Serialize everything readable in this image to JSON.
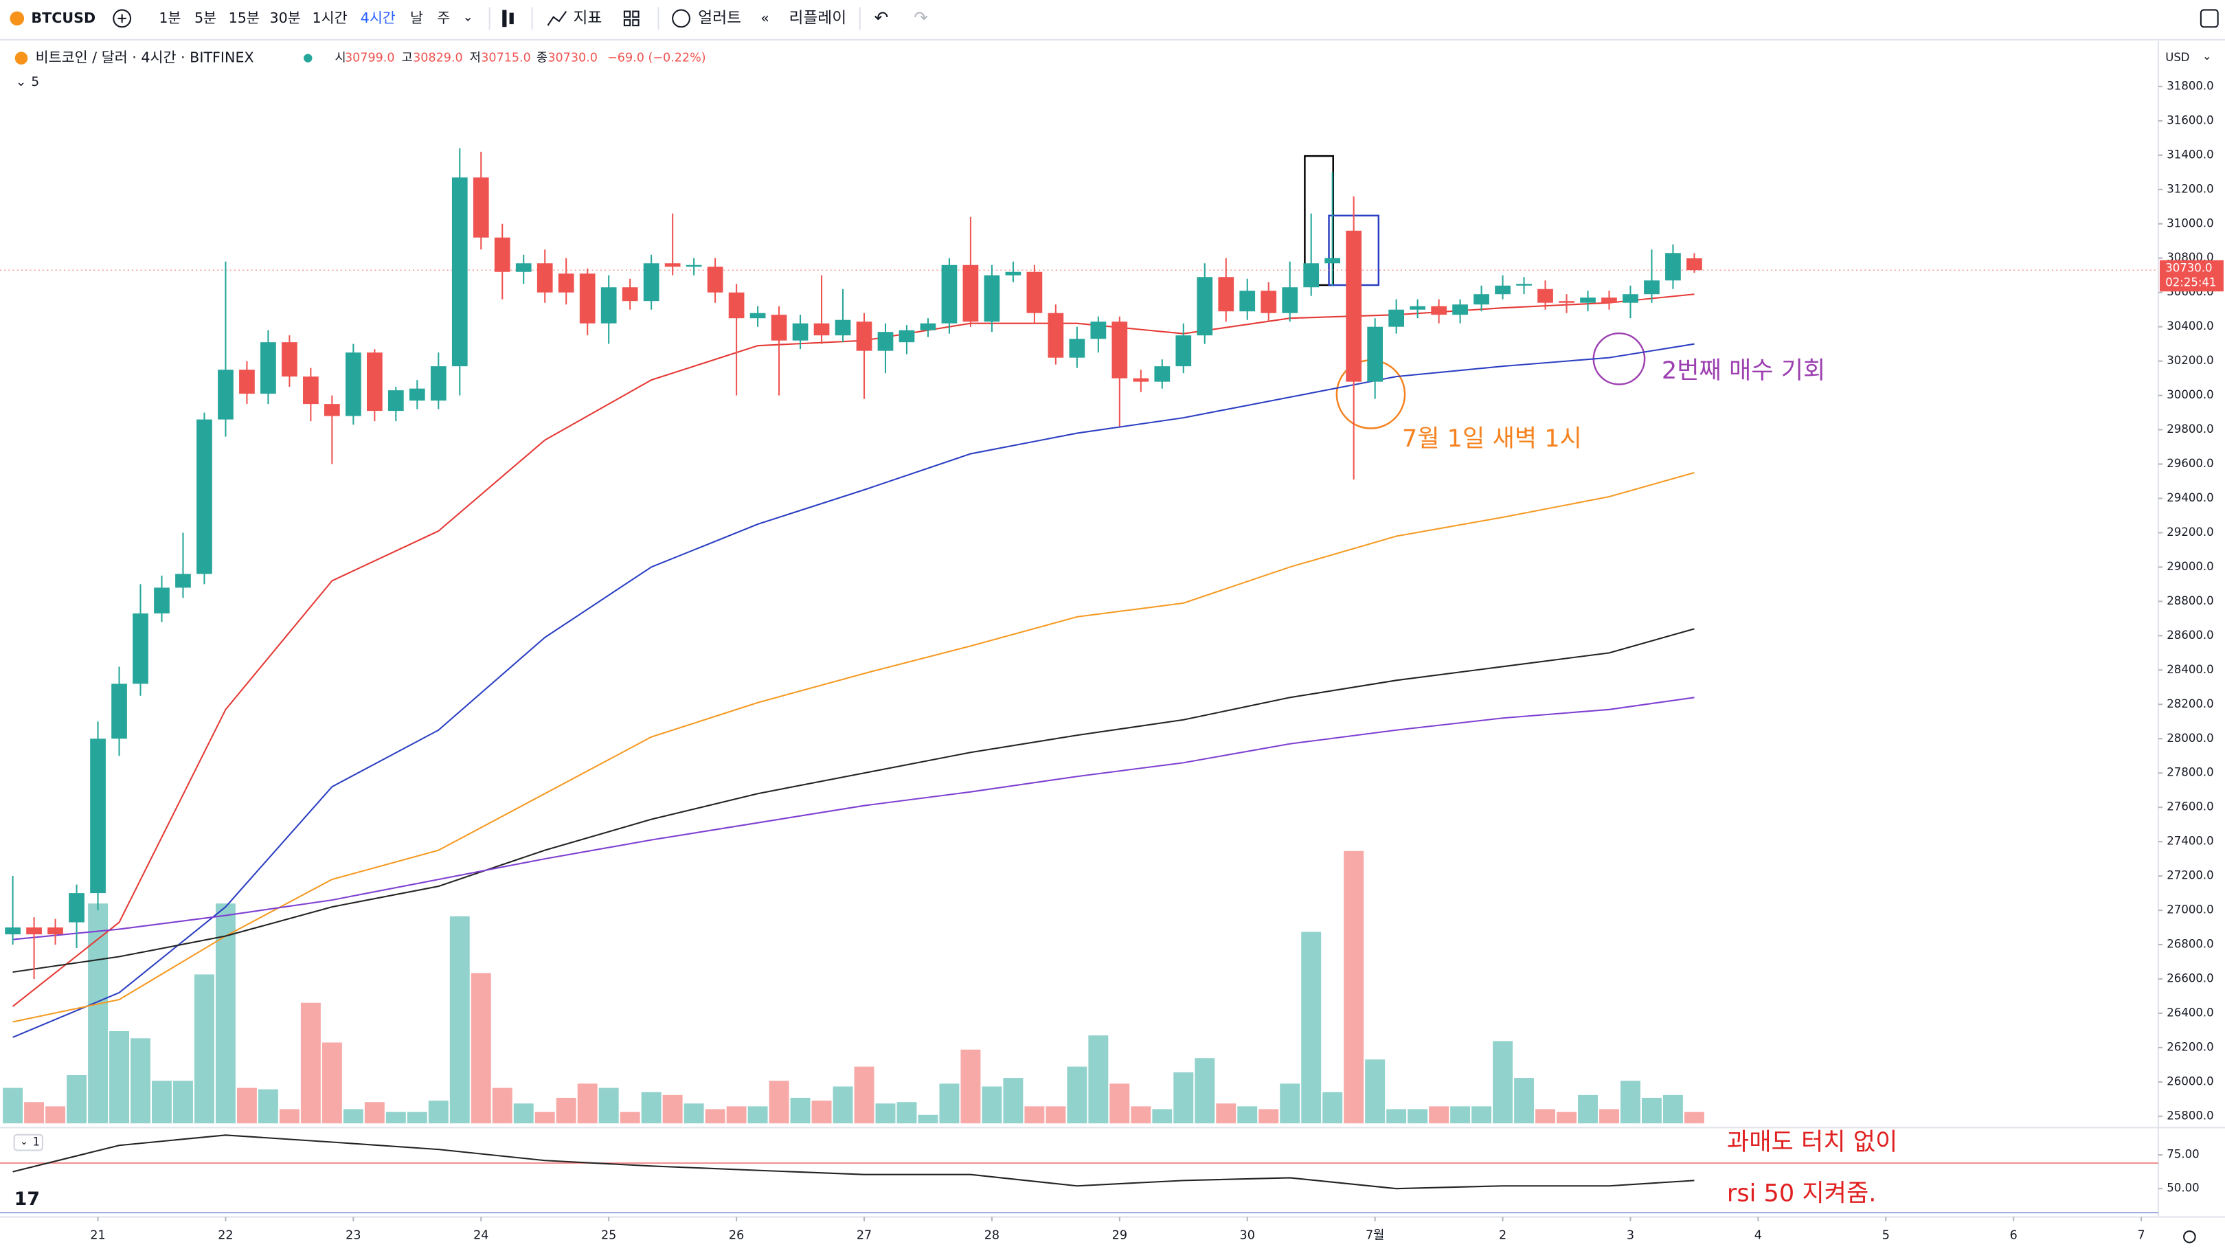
{
  "toolbar": {
    "symbol": "BTCUSD",
    "intervals": [
      "1분",
      "5분",
      "15분",
      "30분",
      "1시간",
      "4시간",
      "날",
      "주"
    ],
    "active_interval": 5,
    "indicators": "지표",
    "alerts": "얼러트",
    "replay": "리플레이"
  },
  "legend": {
    "title": "비트코인 / 달러 · 4시간 · BITFINEX",
    "open_label": "시",
    "open": "30799.0",
    "high_label": "고",
    "high": "30829.0",
    "low_label": "저",
    "low": "30715.0",
    "close_label": "종",
    "close": "30730.0",
    "change": "−69.0 (−0.22%)",
    "indicator_count": "5",
    "rsi_label": "1",
    "currency": "USD",
    "price_label": "30730.0",
    "countdown": "02:25:41"
  },
  "chart_data": {
    "type": "candlestick",
    "open": [
      26860,
      26900,
      26900,
      26930,
      27100,
      28000,
      28320,
      28730,
      28880,
      28960,
      29860,
      30150,
      30010,
      30310,
      30110,
      29950,
      29880,
      30250,
      29910,
      29970,
      29970,
      30170,
      31270,
      30920,
      30720,
      30770,
      30710,
      30710,
      30420,
      30630,
      30550,
      30770,
      30750,
      30750,
      30600,
      30450,
      30470,
      30320,
      30420,
      30350,
      30430,
      30260,
      30310,
      30380,
      30420,
      30760,
      30430,
      30700,
      30720,
      30480,
      30220,
      30330,
      30430,
      30100,
      30080,
      30170,
      30350,
      30690,
      30490,
      30610,
      30480,
      30630,
      30770,
      30960,
      30080,
      30400,
      30500,
      30520,
      30470,
      30530,
      30590,
      30640,
      30620,
      30550,
      30540,
      30570,
      30540,
      30590,
      30670,
      30799
    ],
    "high": [
      27200,
      26960,
      26950,
      27150,
      28100,
      28420,
      28900,
      28950,
      29200,
      29900,
      30780,
      30200,
      30380,
      30350,
      30160,
      30000,
      30300,
      30270,
      30050,
      30090,
      30250,
      31440,
      31420,
      31000,
      30820,
      30850,
      30800,
      30740,
      30700,
      30680,
      30820,
      31060,
      30800,
      30800,
      30650,
      30520,
      30520,
      30470,
      30700,
      30620,
      30480,
      30420,
      30410,
      30450,
      30800,
      31040,
      30760,
      30780,
      30760,
      30530,
      30400,
      30460,
      30460,
      30150,
      30210,
      30420,
      30770,
      30800,
      30680,
      30660,
      30780,
      31060,
      31300,
      31160,
      30450,
      30560,
      30560,
      30560,
      30560,
      30640,
      30700,
      30690,
      30670,
      30590,
      30610,
      30610,
      30640,
      30850,
      30880,
      30829
    ],
    "low": [
      26800,
      26600,
      26800,
      26780,
      27000,
      27900,
      28250,
      28680,
      28820,
      28900,
      29760,
      29950,
      29950,
      30050,
      29850,
      29600,
      29830,
      29850,
      29850,
      29920,
      29920,
      30000,
      30850,
      30560,
      30650,
      30540,
      30530,
      30350,
      30300,
      30500,
      30500,
      30700,
      30700,
      30540,
      30000,
      30400,
      30000,
      30270,
      30300,
      30310,
      29980,
      30130,
      30240,
      30340,
      30360,
      30400,
      30370,
      30660,
      30420,
      30180,
      30160,
      30250,
      29820,
      30020,
      30040,
      30130,
      30300,
      30430,
      30440,
      30430,
      30430,
      30580,
      30640,
      29510,
      29980,
      30360,
      30450,
      30420,
      30420,
      30490,
      30560,
      30590,
      30500,
      30480,
      30490,
      30500,
      30450,
      30540,
      30620,
      30715
    ],
    "close": [
      26900,
      26860,
      26860,
      27100,
      28000,
      28320,
      28730,
      28880,
      28960,
      29860,
      30150,
      30010,
      30310,
      30110,
      29950,
      29880,
      30250,
      29910,
      30030,
      30040,
      30170,
      31270,
      30920,
      30720,
      30770,
      30600,
      30600,
      30420,
      30630,
      30550,
      30770,
      30750,
      30760,
      30600,
      30450,
      30480,
      30320,
      30420,
      30350,
      30440,
      30260,
      30370,
      30380,
      30420,
      30760,
      30430,
      30700,
      30720,
      30480,
      30220,
      30330,
      30430,
      30100,
      30080,
      30170,
      30350,
      30690,
      30490,
      30610,
      30480,
      30630,
      30770,
      30800,
      30080,
      30400,
      30500,
      30520,
      30470,
      30530,
      30590,
      30640,
      30650,
      30540,
      30540,
      30570,
      30540,
      30590,
      30670,
      30830,
      30730
    ],
    "volume": [
      25,
      15,
      12,
      34,
      155,
      65,
      60,
      30,
      30,
      105,
      155,
      25,
      24,
      10,
      85,
      57,
      10,
      15,
      8,
      8,
      16,
      146,
      106,
      25,
      14,
      8,
      18,
      28,
      25,
      8,
      22,
      20,
      14,
      10,
      12,
      12,
      30,
      18,
      16,
      26,
      40,
      14,
      15,
      6,
      28,
      52,
      26,
      32,
      12,
      12,
      40,
      62,
      28,
      12,
      10,
      36,
      46,
      14,
      12,
      10,
      28,
      135,
      22,
      192,
      45,
      10,
      10,
      12,
      12,
      12,
      58,
      32,
      10,
      8,
      20,
      10,
      30,
      18,
      20,
      8
    ],
    "up_color": "#26a69a",
    "down_color": "#ef5350",
    "xlim": [
      -0.6,
      100.8
    ],
    "xticks": [
      {
        "value": 4,
        "label": "21"
      },
      {
        "value": 10,
        "label": "22"
      },
      {
        "value": 16,
        "label": "23"
      },
      {
        "value": 22,
        "label": "24"
      },
      {
        "value": 28,
        "label": "25"
      },
      {
        "value": 34,
        "label": "26"
      },
      {
        "value": 40,
        "label": "27"
      },
      {
        "value": 46,
        "label": "28"
      },
      {
        "value": 52,
        "label": "29"
      },
      {
        "value": 58,
        "label": "30"
      },
      {
        "value": 64,
        "label": "7월"
      },
      {
        "value": 70,
        "label": "2"
      },
      {
        "value": 76,
        "label": "3"
      },
      {
        "value": 82,
        "label": "4"
      },
      {
        "value": 88,
        "label": "5"
      },
      {
        "value": 94,
        "label": "6"
      },
      {
        "value": 100,
        "label": "7"
      }
    ],
    "ylim": [
      25600,
      32000
    ],
    "yticks": [
      {
        "value": 25800,
        "label": "25800.0"
      },
      {
        "value": 26000,
        "label": "26000.0"
      },
      {
        "value": 26200,
        "label": "26200.0"
      },
      {
        "value": 26400,
        "label": "26400.0"
      },
      {
        "value": 26600,
        "label": "26600.0"
      },
      {
        "value": 26800,
        "label": "26800.0"
      },
      {
        "value": 27000,
        "label": "27000.0"
      },
      {
        "value": 27200,
        "label": "27200.0"
      },
      {
        "value": 27400,
        "label": "27400.0"
      },
      {
        "value": 27600,
        "label": "27600.0"
      },
      {
        "value": 27800,
        "label": "27800.0"
      },
      {
        "value": 28000,
        "label": "28000.0"
      },
      {
        "value": 28200,
        "label": "28200.0"
      },
      {
        "value": 28400,
        "label": "28400.0"
      },
      {
        "value": 28600,
        "label": "28600.0"
      },
      {
        "value": 28800,
        "label": "28800.0"
      },
      {
        "value": 29000,
        "label": "29000.0"
      },
      {
        "value": 29200,
        "label": "29200.0"
      },
      {
        "value": 29400,
        "label": "29400.0"
      },
      {
        "value": 29600,
        "label": "29600.0"
      },
      {
        "value": 29800,
        "label": "29800.0"
      },
      {
        "value": 30000,
        "label": "30000.0"
      },
      {
        "value": 30200,
        "label": "30200.0"
      },
      {
        "value": 30400,
        "label": "30400.0"
      },
      {
        "value": 30600,
        "label": "30600.0"
      },
      {
        "value": 30800,
        "label": "30800.0"
      },
      {
        "value": 31000,
        "label": "31000.0"
      },
      {
        "value": 31200,
        "label": "31200.0"
      },
      {
        "value": 31400,
        "label": "31400.0"
      },
      {
        "value": 31600,
        "label": "31600.0"
      },
      {
        "value": 31800,
        "label": "31800.0"
      }
    ],
    "ma_x": [
      0,
      5,
      10,
      15,
      20,
      25,
      30,
      35,
      40,
      45,
      50,
      55,
      60,
      65,
      70,
      75,
      79
    ],
    "moving_averages": [
      {
        "color": "#e53935",
        "values": [
          26440,
          26930,
          28170,
          28920,
          29210,
          29740,
          30090,
          30290,
          30320,
          30420,
          30420,
          30360,
          30450,
          30470,
          30510,
          30540,
          30590
        ]
      },
      {
        "color": "#2b3fc2",
        "values": [
          26260,
          26520,
          27020,
          27720,
          28050,
          28590,
          29000,
          29250,
          29450,
          29660,
          29780,
          29870,
          29990,
          30110,
          30170,
          30220,
          30300
        ]
      },
      {
        "color": "#f59a23",
        "values": [
          26350,
          26480,
          26850,
          27180,
          27350,
          27680,
          28010,
          28210,
          28380,
          28540,
          28710,
          28790,
          29000,
          29180,
          29290,
          29410,
          29550
        ]
      },
      {
        "color": "#222222",
        "values": [
          26640,
          26730,
          26850,
          27020,
          27140,
          27350,
          27530,
          27680,
          27800,
          27920,
          28020,
          28110,
          28240,
          28340,
          28420,
          28500,
          28640
        ]
      },
      {
        "color": "#7e3fd1",
        "values": [
          26830,
          26890,
          26970,
          27060,
          27180,
          27300,
          27410,
          27510,
          27610,
          27690,
          27780,
          27860,
          27970,
          28050,
          28120,
          28170,
          28240
        ]
      }
    ],
    "rsi": {
      "color": "#222222",
      "values": [
        62.5,
        82,
        89.6,
        84.4,
        79,
        70.8,
        66.7,
        63.5,
        60.4,
        60.4,
        52,
        56,
        58,
        50,
        52,
        52,
        56
      ],
      "ylim": [
        29,
        92
      ],
      "yticks": [
        {
          "value": 75,
          "label": "75.00"
        },
        {
          "value": 50,
          "label": "50.00"
        }
      ]
    },
    "annotations": [
      {
        "text": "7월 1일 새벽 1시",
        "color": "#f5821f"
      },
      {
        "text": "2번째 매수 기회",
        "color": "#9c3fb0"
      },
      {
        "text": "과매도 터치 없이",
        "color": "#e02020"
      },
      {
        "text": "rsi 50 지켜줌.",
        "color": "#e02020"
      }
    ]
  }
}
